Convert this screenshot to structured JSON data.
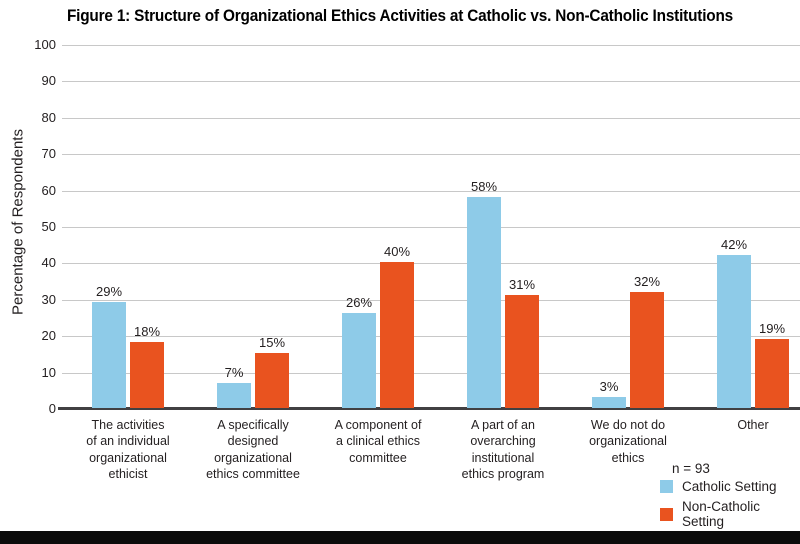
{
  "chart_data": {
    "type": "bar",
    "title": "Figure 1: Structure of Organizational Ethics Activities at Catholic vs. Non-Catholic Institutions",
    "xlabel": "",
    "ylabel": "Percentage of Respondents",
    "ylim": [
      0,
      100
    ],
    "ytick_step": 10,
    "grid": true,
    "legend_position": "bottom-right",
    "n_label": "n = 93",
    "value_label_suffix": "%",
    "categories": [
      "The activities\nof an individual\norganizational\nethicist",
      "A specifically\ndesigned\norganizational\nethics committee",
      "A component of\na clinical ethics\ncommittee",
      "A part of an\noverarching\ninstitutional\nethics program",
      "We do not do\norganizational\nethics",
      "Other"
    ],
    "series": [
      {
        "name": "Catholic Setting",
        "color": "#8ECBE8",
        "values": [
          29,
          7,
          26,
          58,
          3,
          42
        ]
      },
      {
        "name": "Non-Catholic Setting",
        "color": "#E9531F",
        "values": [
          18,
          15,
          40,
          31,
          32,
          19
        ]
      }
    ]
  },
  "colors": {
    "gridline": "#c8c8c8",
    "axis": "#414042",
    "text": "#231f20",
    "footer_bar": "#0b0b0b"
  }
}
